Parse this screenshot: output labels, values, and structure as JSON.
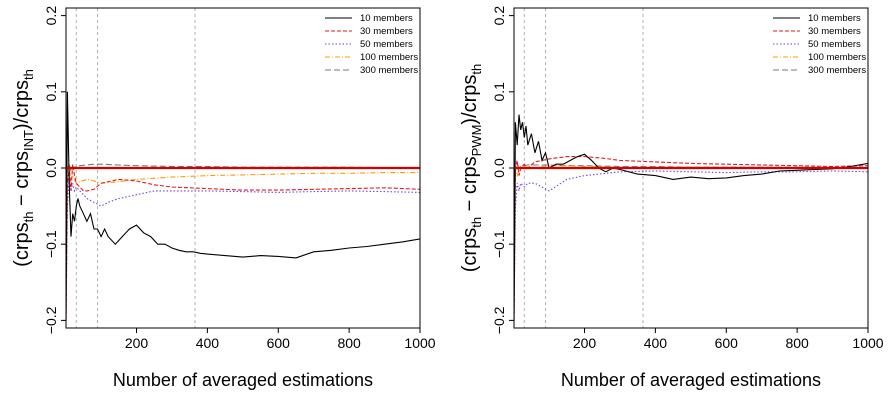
{
  "chart_data": [
    {
      "type": "line",
      "xlabel": "Number of averaged estimations",
      "ylabel": {
        "pre": "(crps",
        "sub1": "th",
        "mid": " − crps",
        "sub2": "INT",
        "post": ")/crps",
        "sub3": "th"
      },
      "xlim": [
        1,
        1000
      ],
      "ylim": [
        -0.21,
        0.21
      ],
      "xticks": [
        200,
        400,
        600,
        800,
        1000
      ],
      "xtick_labels": [
        "200",
        "400",
        "600",
        "800",
        "1000"
      ],
      "yticks": [
        -0.2,
        -0.1,
        0.0,
        0.1,
        0.2
      ],
      "ytick_labels": [
        "−0.2",
        "−0.1",
        "0.0",
        "0.1",
        "0.2"
      ],
      "vlines": [
        30,
        90,
        365
      ],
      "hline": 0,
      "legend": "top-right",
      "series": [
        {
          "name": "10 members",
          "color": "#000000",
          "dash": "",
          "x": [
            1,
            5,
            10,
            15,
            20,
            25,
            30,
            35,
            40,
            50,
            60,
            70,
            80,
            90,
            100,
            110,
            120,
            140,
            160,
            180,
            200,
            220,
            240,
            260,
            280,
            300,
            320,
            340,
            360,
            380,
            400,
            450,
            500,
            550,
            600,
            650,
            700,
            750,
            800,
            850,
            900,
            950,
            1000
          ],
          "y": [
            -0.2,
            0.1,
            -0.02,
            -0.09,
            -0.06,
            -0.07,
            -0.05,
            -0.04,
            -0.05,
            -0.06,
            -0.07,
            -0.06,
            -0.08,
            -0.08,
            -0.09,
            -0.08,
            -0.09,
            -0.1,
            -0.09,
            -0.08,
            -0.075,
            -0.085,
            -0.09,
            -0.1,
            -0.1,
            -0.105,
            -0.108,
            -0.11,
            -0.11,
            -0.112,
            -0.113,
            -0.115,
            -0.117,
            -0.115,
            -0.116,
            -0.118,
            -0.11,
            -0.108,
            -0.105,
            -0.103,
            -0.1,
            -0.097,
            -0.093
          ]
        },
        {
          "name": "30 members",
          "color": "#e31a1c",
          "dash": "4,2",
          "x": [
            1,
            5,
            10,
            15,
            20,
            25,
            30,
            40,
            50,
            60,
            80,
            100,
            150,
            200,
            250,
            300,
            400,
            500,
            600,
            700,
            800,
            900,
            1000
          ],
          "y": [
            -0.2,
            -0.02,
            0.0,
            -0.03,
            0.005,
            -0.01,
            -0.02,
            -0.025,
            -0.03,
            -0.03,
            -0.028,
            -0.02,
            -0.015,
            -0.017,
            -0.022,
            -0.025,
            -0.027,
            -0.029,
            -0.029,
            -0.028,
            -0.027,
            -0.026,
            -0.028
          ]
        },
        {
          "name": "50 members",
          "color": "#7b3fe4",
          "dash": "1.5,2",
          "x": [
            1,
            5,
            10,
            15,
            20,
            25,
            30,
            40,
            50,
            60,
            80,
            100,
            120,
            150,
            200,
            250,
            300,
            400,
            500,
            600,
            700,
            800,
            900,
            1000
          ],
          "y": [
            -0.2,
            -0.05,
            -0.01,
            -0.03,
            -0.02,
            -0.03,
            -0.025,
            -0.03,
            -0.035,
            -0.04,
            -0.045,
            -0.05,
            -0.045,
            -0.04,
            -0.035,
            -0.03,
            -0.03,
            -0.03,
            -0.031,
            -0.032,
            -0.031,
            -0.03,
            -0.031,
            -0.032
          ]
        },
        {
          "name": "100 members",
          "color": "#ff9900",
          "dash": "5,2,1,2",
          "x": [
            1,
            5,
            10,
            15,
            20,
            25,
            30,
            40,
            60,
            80,
            100,
            150,
            200,
            300,
            400,
            500,
            600,
            700,
            800,
            900,
            1000
          ],
          "y": [
            -0.2,
            0.0,
            0.005,
            -0.015,
            -0.01,
            -0.015,
            -0.02,
            -0.018,
            -0.015,
            -0.017,
            -0.02,
            -0.018,
            -0.015,
            -0.012,
            -0.01,
            -0.009,
            -0.008,
            -0.007,
            -0.007,
            -0.006,
            -0.006
          ]
        },
        {
          "name": "300 members",
          "color": "#777777",
          "dash": "6,3",
          "x": [
            1,
            5,
            10,
            15,
            20,
            30,
            40,
            60,
            80,
            100,
            150,
            200,
            300,
            400,
            500,
            600,
            700,
            800,
            900,
            1000
          ],
          "y": [
            -0.1,
            0.0,
            0.005,
            -0.005,
            0.0,
            0.002,
            0.003,
            0.004,
            0.005,
            0.005,
            0.004,
            0.003,
            0.002,
            0.002,
            0.001,
            0.001,
            0.001,
            0.001,
            0.0005,
            0.0005
          ]
        }
      ]
    },
    {
      "type": "line",
      "xlabel": "Number of averaged estimations",
      "ylabel": {
        "pre": "(crps",
        "sub1": "th",
        "mid": " − crps",
        "sub2": "PWM",
        "post": ")/crps",
        "sub3": "th"
      },
      "xlim": [
        1,
        1000
      ],
      "ylim": [
        -0.21,
        0.21
      ],
      "xticks": [
        200,
        400,
        600,
        800,
        1000
      ],
      "xtick_labels": [
        "200",
        "400",
        "600",
        "800",
        "1000"
      ],
      "yticks": [
        -0.2,
        -0.1,
        0.0,
        0.1,
        0.2
      ],
      "ytick_labels": [
        "−0.2",
        "−0.1",
        "0.0",
        "0.1",
        "0.2"
      ],
      "vlines": [
        30,
        90,
        365
      ],
      "hline": 0,
      "legend": "top-right",
      "series": [
        {
          "name": "10 members",
          "color": "#000000",
          "dash": "",
          "x": [
            1,
            5,
            10,
            15,
            20,
            25,
            30,
            35,
            40,
            50,
            60,
            70,
            80,
            90,
            100,
            120,
            140,
            160,
            180,
            200,
            220,
            240,
            260,
            280,
            300,
            350,
            400,
            450,
            500,
            550,
            600,
            650,
            700,
            750,
            800,
            850,
            900,
            950,
            1000
          ],
          "y": [
            -0.2,
            0.06,
            0.03,
            0.07,
            0.05,
            0.06,
            0.04,
            0.055,
            0.03,
            0.045,
            0.02,
            0.035,
            0.01,
            0.02,
            0.0,
            0.005,
            0.005,
            0.01,
            0.015,
            0.018,
            0.01,
            0.0,
            -0.005,
            0.0,
            -0.002,
            -0.008,
            -0.01,
            -0.015,
            -0.012,
            -0.014,
            -0.013,
            -0.01,
            -0.008,
            -0.004,
            -0.003,
            -0.002,
            -0.001,
            0.002,
            0.006
          ]
        },
        {
          "name": "30 members",
          "color": "#e31a1c",
          "dash": "4,2",
          "x": [
            1,
            5,
            10,
            15,
            20,
            30,
            40,
            60,
            80,
            100,
            150,
            200,
            250,
            300,
            400,
            500,
            600,
            700,
            800,
            900,
            1000
          ],
          "y": [
            -0.2,
            0.0,
            0.01,
            -0.01,
            0.0,
            0.005,
            0.0,
            0.008,
            0.01,
            0.012,
            0.015,
            0.015,
            0.013,
            0.01,
            0.008,
            0.006,
            0.005,
            0.004,
            0.003,
            0.002,
            0.003
          ]
        },
        {
          "name": "50 members",
          "color": "#7b3fe4",
          "dash": "1.5,2",
          "x": [
            1,
            5,
            10,
            15,
            20,
            30,
            40,
            60,
            80,
            100,
            150,
            200,
            300,
            400,
            500,
            600,
            700,
            800,
            900,
            1000
          ],
          "y": [
            -0.2,
            -0.05,
            -0.02,
            -0.03,
            -0.02,
            -0.025,
            -0.02,
            -0.02,
            -0.025,
            -0.03,
            -0.015,
            -0.01,
            -0.005,
            -0.004,
            -0.005,
            -0.006,
            -0.005,
            -0.005,
            -0.004,
            -0.005
          ]
        },
        {
          "name": "100 members",
          "color": "#ff9900",
          "dash": "5,2,1,2",
          "x": [
            1,
            5,
            10,
            15,
            20,
            30,
            40,
            60,
            80,
            100,
            150,
            200,
            300,
            400,
            500,
            600,
            700,
            800,
            900,
            1000
          ],
          "y": [
            -0.2,
            0.0,
            -0.01,
            -0.005,
            0.0,
            0.002,
            0.0,
            0.0,
            0.002,
            0.003,
            0.003,
            0.002,
            0.001,
            0.001,
            0.001,
            0.0005,
            0.0005,
            0.0005,
            0.0005,
            0.0005
          ]
        },
        {
          "name": "300 members",
          "color": "#777777",
          "dash": "6,3",
          "x": [
            1,
            5,
            10,
            15,
            20,
            30,
            40,
            60,
            80,
            100,
            150,
            200,
            300,
            400,
            500,
            600,
            700,
            800,
            900,
            1000
          ],
          "y": [
            -0.1,
            0.0,
            0.005,
            0.0,
            0.002,
            0.003,
            0.004,
            0.004,
            0.004,
            0.004,
            0.003,
            0.003,
            0.002,
            0.002,
            0.001,
            0.001,
            0.001,
            0.001,
            0.0005,
            0.0005
          ]
        }
      ]
    }
  ]
}
